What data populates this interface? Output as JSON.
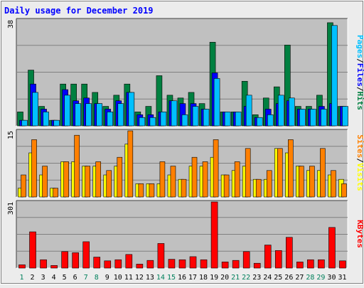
{
  "title": "Daily usage for December 2019",
  "colors": {
    "hits": "#008040",
    "files": "#0000FF",
    "pages": "#00C0FF",
    "visits": "#FFFF00",
    "sites": "#FF8000",
    "kbytes": "#FF0000",
    "title": "#0000FF",
    "plot_bg": "#C0C0C0",
    "weekend_label": "#00805C",
    "weekday_label": "#000000"
  },
  "chart_data": [
    {
      "type": "bar",
      "panel": "top",
      "y_max_label": "38",
      "ylim": [
        0,
        38
      ],
      "legend": [
        "Hits",
        "/",
        "Files",
        "/",
        "Pages"
      ],
      "categories": [
        "1",
        "2",
        "3",
        "4",
        "5",
        "6",
        "7",
        "8",
        "9",
        "10",
        "11",
        "12",
        "13",
        "14",
        "15",
        "16",
        "17",
        "18",
        "19",
        "20",
        "21",
        "22",
        "23",
        "24",
        "25",
        "26",
        "27",
        "28",
        "29",
        "30",
        "31"
      ],
      "series": [
        {
          "name": "Hits",
          "values": [
            5,
            20,
            7,
            2,
            15,
            15,
            15,
            12,
            7,
            11,
            15,
            5,
            7,
            18,
            11,
            10,
            12,
            8,
            30,
            5,
            5,
            16,
            4,
            10,
            14,
            29,
            7,
            7,
            11,
            37,
            7
          ]
        },
        {
          "name": "Files",
          "values": [
            2,
            15,
            6,
            2,
            13,
            9,
            10,
            8,
            6,
            9,
            12,
            4,
            4,
            5,
            9,
            8,
            8,
            6,
            19,
            5,
            5,
            7,
            3,
            6,
            8,
            9,
            6,
            6,
            7,
            8,
            7
          ]
        },
        {
          "name": "Pages",
          "values": [
            2,
            12,
            5,
            2,
            11,
            8,
            8,
            8,
            5,
            8,
            12,
            3,
            3,
            5,
            9,
            4,
            7,
            6,
            17,
            5,
            5,
            11,
            3,
            4,
            11,
            10,
            6,
            6,
            6,
            36,
            7
          ]
        }
      ]
    },
    {
      "type": "bar",
      "panel": "middle",
      "y_max_label": "15",
      "ylim": [
        0,
        15
      ],
      "legend": [
        "Visits",
        "/",
        "Sites"
      ],
      "categories": [
        "1",
        "2",
        "3",
        "4",
        "5",
        "6",
        "7",
        "8",
        "9",
        "10",
        "11",
        "12",
        "13",
        "14",
        "15",
        "16",
        "17",
        "18",
        "19",
        "20",
        "21",
        "22",
        "23",
        "24",
        "25",
        "26",
        "27",
        "28",
        "29",
        "30",
        "31"
      ],
      "series": [
        {
          "name": "Visits",
          "values": [
            2,
            10,
            5,
            2,
            8,
            8,
            7,
            7,
            5,
            7,
            12,
            3,
            3,
            3,
            5,
            4,
            7,
            7,
            9,
            5,
            6,
            7,
            4,
            4,
            11,
            10,
            7,
            6,
            6,
            5,
            4
          ]
        },
        {
          "name": "Sites",
          "values": [
            5,
            13,
            7,
            2,
            8,
            14,
            7,
            8,
            6,
            9,
            15,
            3,
            3,
            8,
            7,
            4,
            9,
            8,
            13,
            5,
            8,
            11,
            4,
            6,
            11,
            13,
            7,
            7,
            11,
            6,
            3
          ]
        }
      ]
    },
    {
      "type": "bar",
      "panel": "bottom",
      "y_max_label": "301",
      "ylim": [
        0,
        301
      ],
      "legend": [
        "KBytes"
      ],
      "categories": [
        "1",
        "2",
        "3",
        "4",
        "5",
        "6",
        "7",
        "8",
        "9",
        "10",
        "11",
        "12",
        "13",
        "14",
        "15",
        "16",
        "17",
        "18",
        "19",
        "20",
        "21",
        "22",
        "23",
        "24",
        "25",
        "26",
        "27",
        "28",
        "29",
        "30",
        "31"
      ],
      "series": [
        {
          "name": "KBytes",
          "values": [
            15,
            165,
            38,
            12,
            75,
            70,
            120,
            50,
            33,
            38,
            62,
            18,
            35,
            112,
            40,
            38,
            52,
            38,
            301,
            28,
            35,
            75,
            22,
            105,
            80,
            140,
            28,
            38,
            38,
            185,
            33
          ]
        }
      ]
    }
  ],
  "x_labels": [
    {
      "label": "1",
      "weekend": true
    },
    {
      "label": "2",
      "weekend": false
    },
    {
      "label": "3",
      "weekend": false
    },
    {
      "label": "4",
      "weekend": false
    },
    {
      "label": "5",
      "weekend": false
    },
    {
      "label": "6",
      "weekend": false
    },
    {
      "label": "7",
      "weekend": true
    },
    {
      "label": "8",
      "weekend": true
    },
    {
      "label": "9",
      "weekend": false
    },
    {
      "label": "10",
      "weekend": false
    },
    {
      "label": "11",
      "weekend": false
    },
    {
      "label": "12",
      "weekend": false
    },
    {
      "label": "13",
      "weekend": false
    },
    {
      "label": "14",
      "weekend": true
    },
    {
      "label": "15",
      "weekend": true
    },
    {
      "label": "16",
      "weekend": false
    },
    {
      "label": "17",
      "weekend": false
    },
    {
      "label": "18",
      "weekend": false
    },
    {
      "label": "19",
      "weekend": false
    },
    {
      "label": "20",
      "weekend": false
    },
    {
      "label": "21",
      "weekend": true
    },
    {
      "label": "22",
      "weekend": true
    },
    {
      "label": "23",
      "weekend": false
    },
    {
      "label": "24",
      "weekend": false
    },
    {
      "label": "25",
      "weekend": false
    },
    {
      "label": "26",
      "weekend": false
    },
    {
      "label": "27",
      "weekend": false
    },
    {
      "label": "28",
      "weekend": true
    },
    {
      "label": "29",
      "weekend": true
    },
    {
      "label": "30",
      "weekend": false
    },
    {
      "label": "31",
      "weekend": false
    }
  ]
}
